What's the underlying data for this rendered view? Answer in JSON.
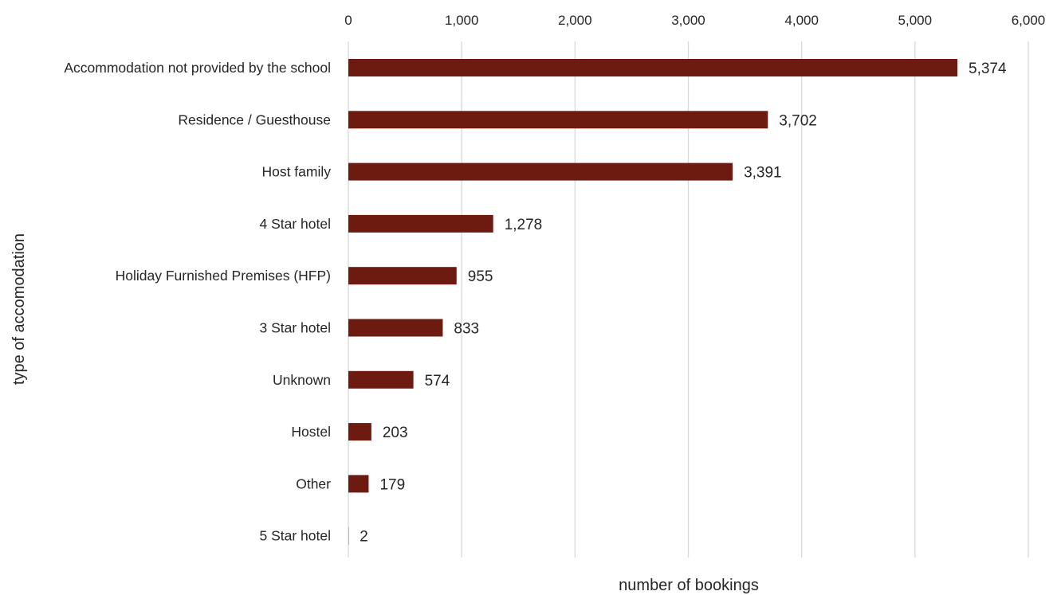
{
  "chart_data": {
    "type": "bar",
    "orientation": "horizontal",
    "title": "",
    "xlabel": "number of bookings",
    "ylabel": "type of accomodation",
    "xlim": [
      0,
      6000
    ],
    "xticks": [
      0,
      1000,
      2000,
      3000,
      4000,
      5000,
      6000
    ],
    "xtick_labels": [
      "0",
      "1,000",
      "2,000",
      "3,000",
      "4,000",
      "5,000",
      "6,000"
    ],
    "x_axis_position": "top",
    "grid": true,
    "legend": "none",
    "categories": [
      "Accommodation not provided by the school",
      "Residence / Guesthouse",
      "Host family",
      "4 Star hotel",
      "Holiday Furnished Premises (HFP)",
      "3 Star hotel",
      "Unknown",
      "Hostel",
      "Other",
      "5 Star hotel"
    ],
    "values": [
      5374,
      3702,
      3391,
      1278,
      955,
      833,
      574,
      203,
      179,
      2
    ],
    "value_labels": [
      "5,374",
      "3,702",
      "3,391",
      "1,278",
      "955",
      "833",
      "574",
      "203",
      "179",
      "2"
    ],
    "bar_color": "#6d1a11",
    "grid_color": "#d9d9d9"
  }
}
